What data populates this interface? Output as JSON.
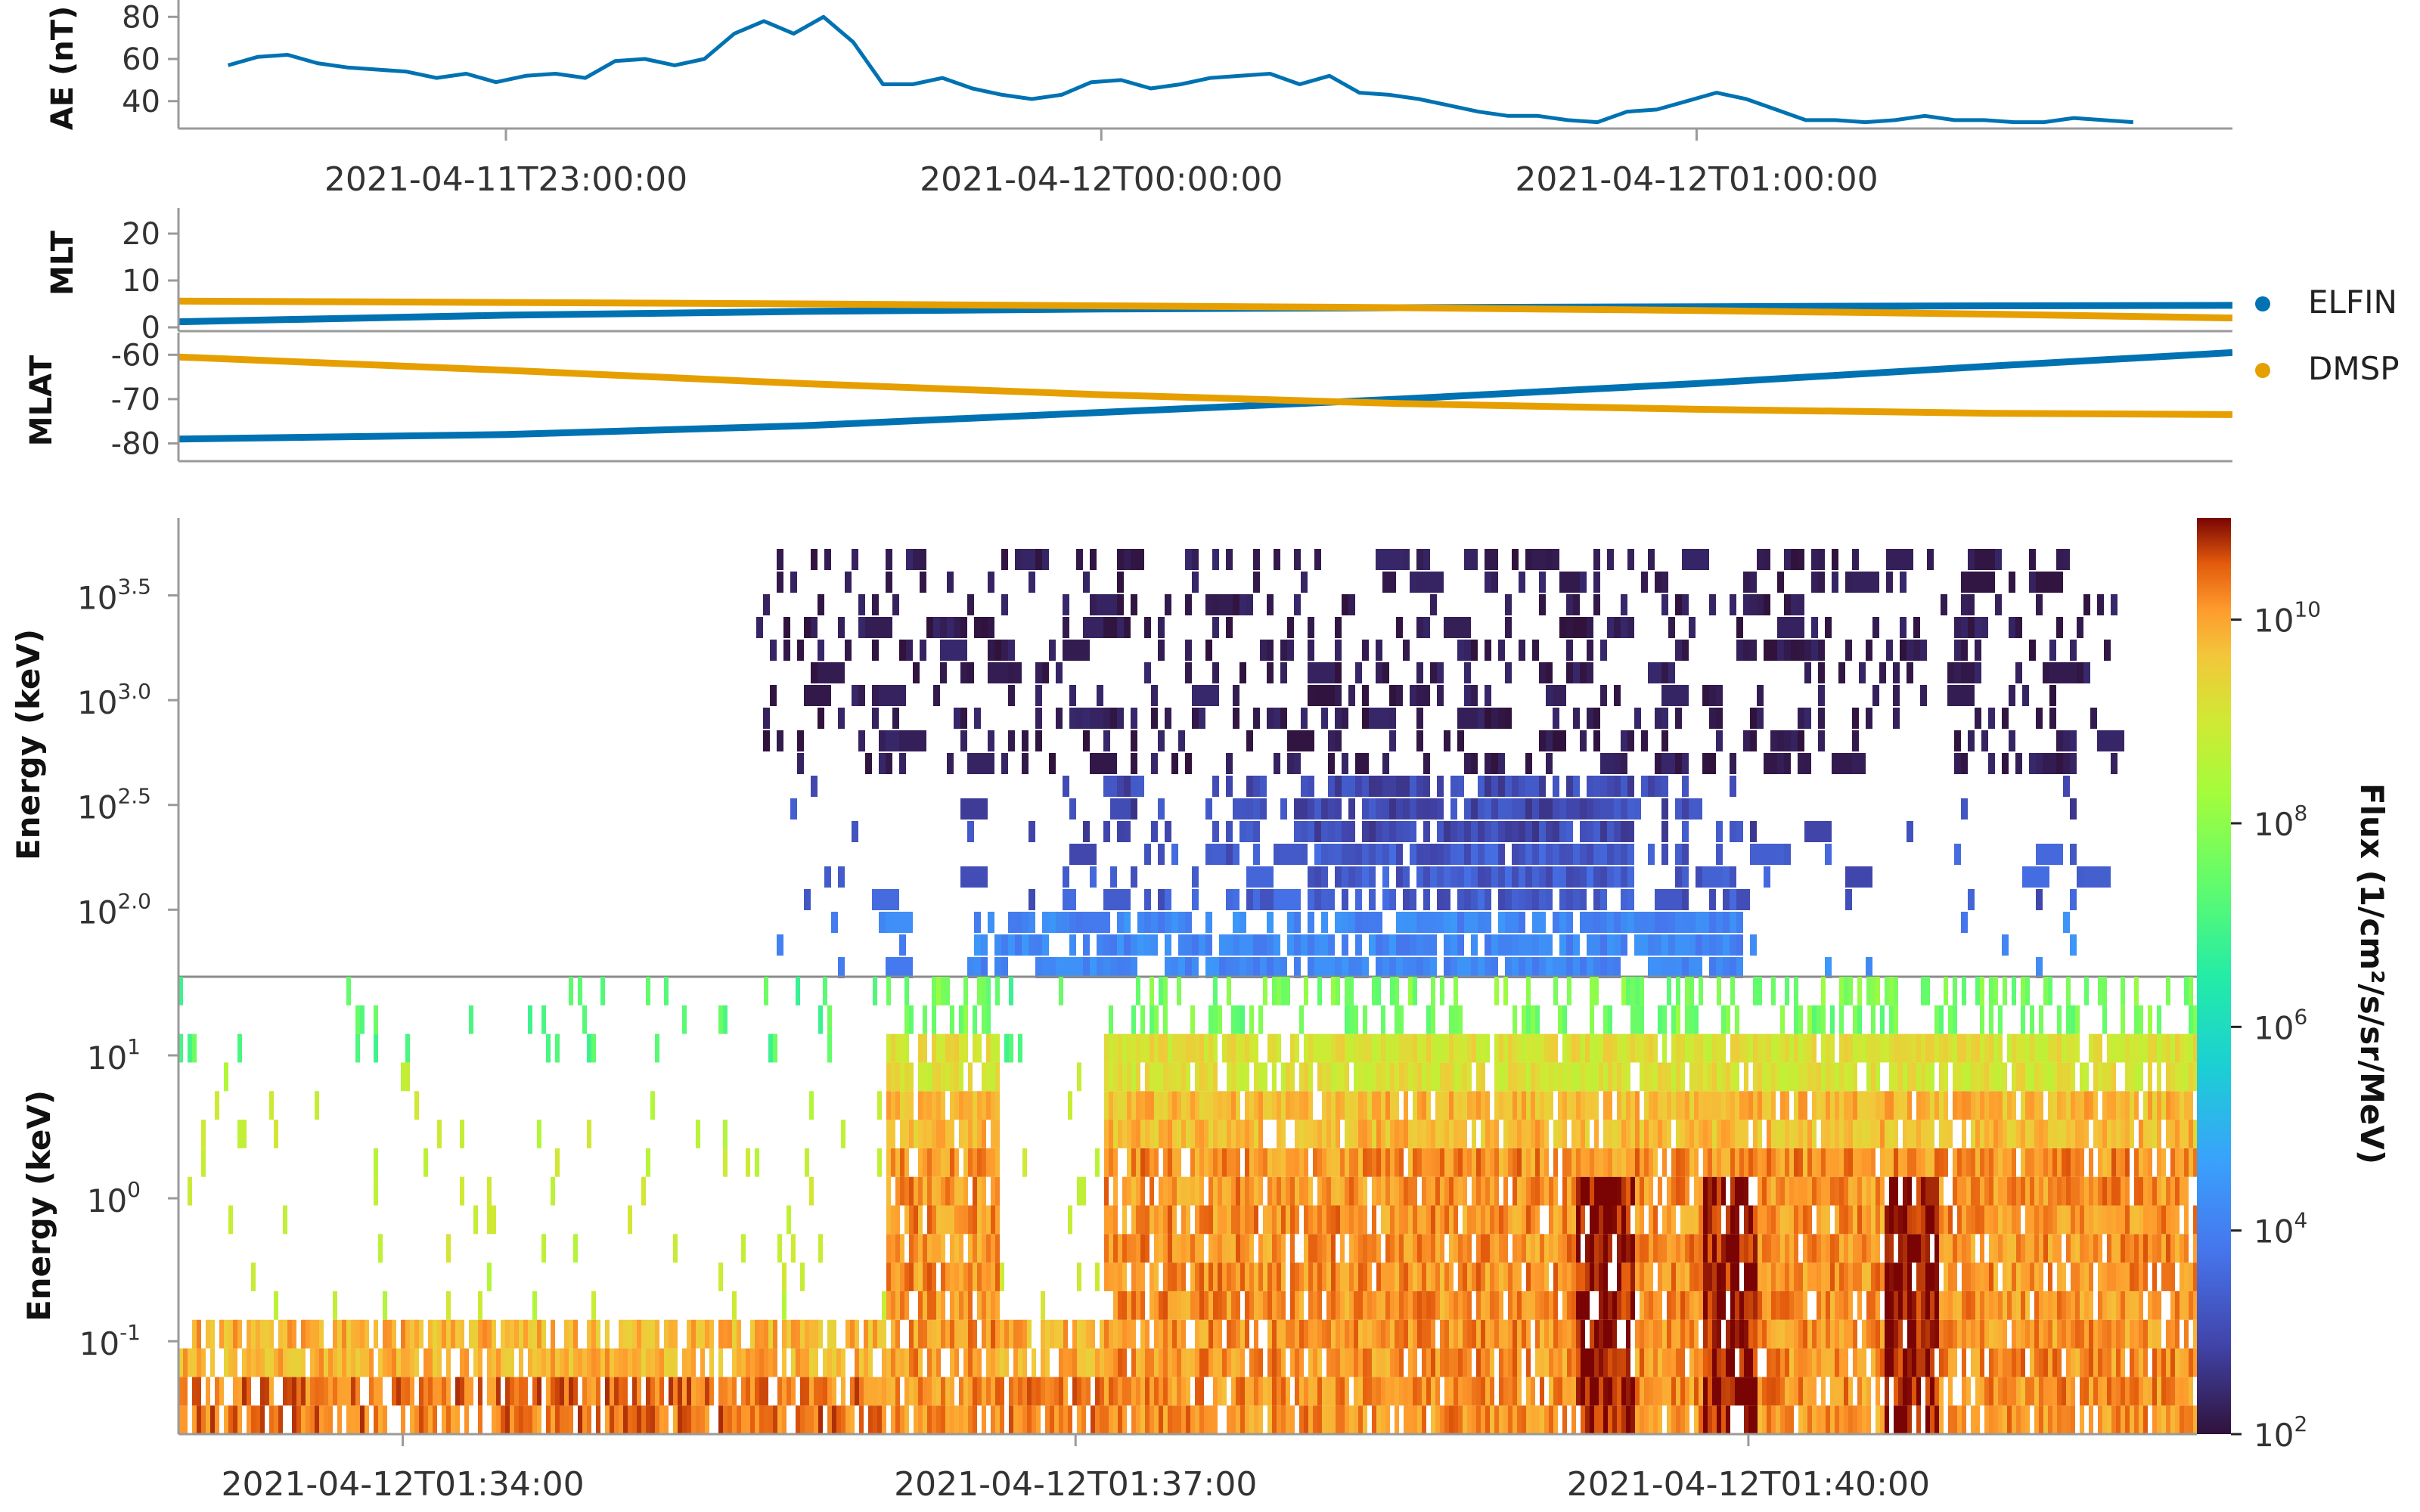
{
  "chart_data": [
    {
      "type": "line",
      "panel": "ae",
      "ylabel": "AE (nT)",
      "yticks": [
        "40",
        "60",
        "80"
      ],
      "ylim": [
        27,
        88
      ],
      "xlim": [
        "2021-04-11T22:27:00",
        "2021-04-12T01:54:00"
      ],
      "xticks": [
        "2021-04-11T23:00:00",
        "2021-04-12T00:00:00",
        "2021-04-12T01:00:00"
      ],
      "series": [
        {
          "color": "#0072B2",
          "x": [
            "2021-04-11T22:32:00",
            "2021-04-11T22:35:00",
            "2021-04-11T22:38:00",
            "2021-04-11T22:41:00",
            "2021-04-11T22:44:00",
            "2021-04-11T22:47:00",
            "2021-04-11T22:50:00",
            "2021-04-11T22:53:00",
            "2021-04-11T22:56:00",
            "2021-04-11T22:59:00",
            "2021-04-11T23:02:00",
            "2021-04-11T23:05:00",
            "2021-04-11T23:08:00",
            "2021-04-11T23:11:00",
            "2021-04-11T23:14:00",
            "2021-04-11T23:17:00",
            "2021-04-11T23:20:00",
            "2021-04-11T23:23:00",
            "2021-04-11T23:26:00",
            "2021-04-11T23:29:00",
            "2021-04-11T23:32:00",
            "2021-04-11T23:35:00",
            "2021-04-11T23:38:00",
            "2021-04-11T23:41:00",
            "2021-04-11T23:44:00",
            "2021-04-11T23:47:00",
            "2021-04-11T23:50:00",
            "2021-04-11T23:53:00",
            "2021-04-11T23:56:00",
            "2021-04-11T23:59:00",
            "2021-04-12T00:02:00",
            "2021-04-12T00:05:00",
            "2021-04-12T00:08:00",
            "2021-04-12T00:11:00",
            "2021-04-12T00:14:00",
            "2021-04-12T00:17:00",
            "2021-04-12T00:20:00",
            "2021-04-12T00:23:00",
            "2021-04-12T00:26:00",
            "2021-04-12T00:29:00",
            "2021-04-12T00:32:00",
            "2021-04-12T00:35:00",
            "2021-04-12T00:38:00",
            "2021-04-12T00:41:00",
            "2021-04-12T00:44:00",
            "2021-04-12T00:47:00",
            "2021-04-12T00:50:00",
            "2021-04-12T00:53:00",
            "2021-04-12T00:56:00",
            "2021-04-12T00:59:00",
            "2021-04-12T01:02:00",
            "2021-04-12T01:05:00",
            "2021-04-12T01:08:00",
            "2021-04-12T01:11:00",
            "2021-04-12T01:14:00",
            "2021-04-12T01:17:00",
            "2021-04-12T01:20:00",
            "2021-04-12T01:23:00",
            "2021-04-12T01:26:00",
            "2021-04-12T01:29:00",
            "2021-04-12T01:32:00",
            "2021-04-12T01:35:00",
            "2021-04-12T01:38:00",
            "2021-04-12T01:41:00",
            "2021-04-12T01:44:00"
          ],
          "y": [
            57,
            61,
            62,
            58,
            56,
            55,
            54,
            51,
            53,
            49,
            52,
            53,
            51,
            59,
            60,
            57,
            60,
            72,
            78,
            72,
            80,
            68,
            48,
            48,
            51,
            46,
            43,
            41,
            43,
            49,
            50,
            46,
            48,
            51,
            52,
            53,
            48,
            52,
            44,
            43,
            41,
            38,
            35,
            33,
            33,
            31,
            30,
            35,
            36,
            40,
            44,
            41,
            36,
            31,
            31,
            30,
            31,
            33,
            31,
            31,
            30,
            30,
            32,
            31,
            30
          ]
        }
      ]
    },
    {
      "type": "line",
      "panel": "mlt",
      "ylabel": "MLT",
      "yticks": [
        "0",
        "10",
        "20"
      ],
      "ylim": [
        0,
        25
      ],
      "series": [
        {
          "name": "ELFIN",
          "color": "#0072B2",
          "x": [
            "2021-04-11T22:27:00",
            "2021-04-11T23:00:00",
            "2021-04-11T23:30:00",
            "2021-04-12T00:00:00",
            "2021-04-12T00:30:00",
            "2021-04-12T01:00:00",
            "2021-04-12T01:30:00",
            "2021-04-12T01:54:00"
          ],
          "y": [
            1.2,
            2.6,
            3.4,
            3.9,
            4.2,
            4.4,
            4.6,
            4.7
          ]
        },
        {
          "name": "DMSP",
          "color": "#E69F00",
          "x": [
            "2021-04-11T22:27:00",
            "2021-04-11T23:00:00",
            "2021-04-11T23:30:00",
            "2021-04-12T00:00:00",
            "2021-04-12T00:30:00",
            "2021-04-12T01:00:00",
            "2021-04-12T01:30:00",
            "2021-04-12T01:54:00"
          ],
          "y": [
            5.6,
            5.3,
            5.0,
            4.6,
            4.2,
            3.6,
            2.8,
            2.0
          ]
        }
      ]
    },
    {
      "type": "line",
      "panel": "mlat",
      "ylabel": "MLAT",
      "yticks": [
        "-80",
        "-70",
        "-60"
      ],
      "ylim": [
        -84,
        -55
      ],
      "series": [
        {
          "name": "ELFIN",
          "color": "#0072B2",
          "x": [
            "2021-04-11T22:27:00",
            "2021-04-11T23:00:00",
            "2021-04-11T23:30:00",
            "2021-04-12T00:00:00",
            "2021-04-12T00:30:00",
            "2021-04-12T01:00:00",
            "2021-04-12T01:30:00",
            "2021-04-12T01:54:00"
          ],
          "y": [
            -79,
            -78,
            -76,
            -73,
            -70,
            -66.5,
            -62.5,
            -59.5
          ]
        },
        {
          "name": "DMSP",
          "color": "#E69F00",
          "x": [
            "2021-04-11T22:27:00",
            "2021-04-11T23:00:00",
            "2021-04-11T23:30:00",
            "2021-04-12T00:00:00",
            "2021-04-12T00:30:00",
            "2021-04-12T01:00:00",
            "2021-04-12T01:30:00",
            "2021-04-12T01:54:00"
          ],
          "y": [
            -60.5,
            -63.5,
            -66.5,
            -69,
            -71,
            -72.3,
            -73.2,
            -73.5
          ]
        }
      ]
    },
    {
      "type": "heatmap",
      "panel": "dmsp-spectrogram",
      "ylabel": "Energy (keV)",
      "yscale": "log",
      "yticks": [
        "10^2.0",
        "10^2.5",
        "10^3.0",
        "10^3.5"
      ],
      "ylim_log10": [
        1.68,
        3.87
      ],
      "xlim": [
        "2021-04-12T01:33:00",
        "2021-04-12T01:42:00"
      ],
      "colormap": "turbo",
      "note_values": "log10 flux, approximate (1/cm^2/s/sr/MeV)"
    },
    {
      "type": "heatmap",
      "panel": "elfin-spectrogram",
      "ylabel": "Energy (keV)",
      "yscale": "log",
      "yticks": [
        "10^-1",
        "10^0",
        "10^1"
      ],
      "ylim_log10": [
        -1.65,
        1.55
      ],
      "xlim": [
        "2021-04-12T01:33:00",
        "2021-04-12T01:42:00"
      ],
      "xticks": [
        "2021-04-12T01:34:00",
        "2021-04-12T01:37:00",
        "2021-04-12T01:40:00"
      ],
      "colormap": "turbo"
    }
  ],
  "legend": {
    "entries": [
      {
        "name": "ELFIN",
        "color": "#0072B2"
      },
      {
        "name": "DMSP",
        "color": "#E69F00"
      }
    ],
    "placement": "right"
  },
  "colorbar": {
    "label": "Flux (1/cm²/s/sr/MeV)",
    "scale": "log",
    "range_log10": [
      2,
      11
    ],
    "ticks": [
      {
        "base": "10",
        "exp": "2",
        "log10": 2
      },
      {
        "base": "10",
        "exp": "4",
        "log10": 4
      },
      {
        "base": "10",
        "exp": "6",
        "log10": 6
      },
      {
        "base": "10",
        "exp": "8",
        "log10": 8
      },
      {
        "base": "10",
        "exp": "10",
        "log10": 10
      }
    ]
  },
  "colors": {
    "elfin": "#0072B2",
    "dmsp": "#E69F00",
    "axis": "#9a9a9a"
  }
}
